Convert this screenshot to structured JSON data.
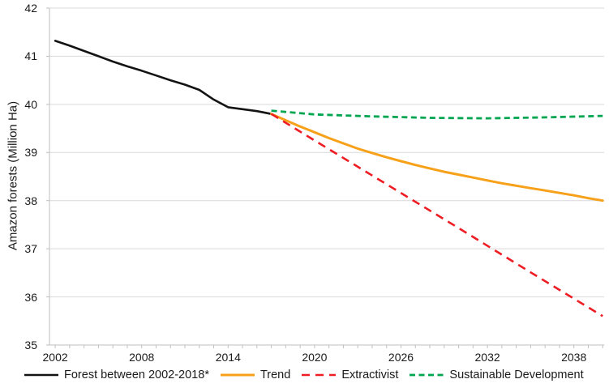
{
  "chart_data": {
    "type": "line",
    "title": "",
    "xlabel": "",
    "ylabel": "Amazon forests (Million Ha)",
    "xlim": [
      2001.6,
      2040.1
    ],
    "ylim": [
      35,
      42
    ],
    "y_ticks": [
      35,
      36,
      37,
      38,
      39,
      40,
      41,
      42
    ],
    "x_major_ticks": [
      2002,
      2008,
      2014,
      2020,
      2026,
      2032,
      2038
    ],
    "x_minor_ticks_start": 2002,
    "x_minor_ticks_end": 2040,
    "x_minor_tick_step": 1,
    "grid": "horizontal",
    "legend_position": "bottom",
    "colors": {
      "grid": "#d9d9d9",
      "axis": "#bfbfbf",
      "text": "#1a1a1a",
      "black_series": "#131313",
      "trend_orange": "#f7a11a",
      "extractivist_red": "#ee1d23",
      "sustainable_green": "#00a550"
    },
    "series": [
      {
        "name": "Forest between 2002-2018*",
        "slug": "forest-2002-2018",
        "color": "#131313",
        "style": "solid",
        "width": 2.6,
        "x": [
          2002,
          2003,
          2004,
          2005,
          2006,
          2007,
          2008,
          2009,
          2010,
          2011,
          2012,
          2013,
          2014,
          2015,
          2016,
          2017
        ],
        "y": [
          41.32,
          41.22,
          41.11,
          41.0,
          40.89,
          40.79,
          40.7,
          40.6,
          40.5,
          40.41,
          40.3,
          40.1,
          39.94,
          39.9,
          39.86,
          39.8
        ]
      },
      {
        "name": "Trend",
        "slug": "trend",
        "color": "#f7a11a",
        "style": "solid",
        "width": 3,
        "x": [
          2017,
          2018,
          2019,
          2020,
          2021,
          2022,
          2023,
          2024,
          2025,
          2026,
          2027,
          2028,
          2029,
          2030,
          2031,
          2032,
          2033,
          2034,
          2035,
          2036,
          2037,
          2038,
          2039,
          2040
        ],
        "y": [
          39.8,
          39.67,
          39.54,
          39.42,
          39.3,
          39.19,
          39.08,
          38.99,
          38.9,
          38.82,
          38.74,
          38.67,
          38.6,
          38.54,
          38.48,
          38.42,
          38.36,
          38.31,
          38.26,
          38.21,
          38.16,
          38.11,
          38.05,
          38.0
        ]
      },
      {
        "name": "Extractivist",
        "slug": "extractivist",
        "color": "#ee1d23",
        "style": "dashed",
        "dash": "10,7",
        "width": 2.6,
        "x": [
          2017,
          2020,
          2025,
          2030,
          2035,
          2040
        ],
        "y": [
          39.8,
          39.25,
          38.34,
          37.43,
          36.51,
          35.6
        ]
      },
      {
        "name": "Sustainable Development",
        "slug": "sustainable-development",
        "color": "#00a550",
        "style": "dashed",
        "dash": "7,4.5",
        "width": 2.8,
        "x": [
          2017,
          2020,
          2024,
          2028,
          2032,
          2036,
          2040
        ],
        "y": [
          39.87,
          39.79,
          39.75,
          39.72,
          39.71,
          39.73,
          39.76
        ]
      }
    ]
  }
}
